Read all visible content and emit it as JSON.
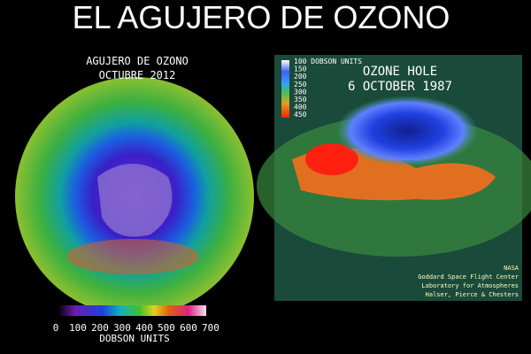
{
  "title": "EL AGUJERO DE OZONO",
  "left_panel": {
    "title_lines": [
      "AGUJERO DE OZONO",
      "OCTUBRE 2012"
    ],
    "colorbar": {
      "ticks": [
        0,
        100,
        200,
        300,
        400,
        500,
        600,
        700
      ],
      "label": "DOBSON UNITS"
    }
  },
  "right_panel": {
    "title_lines": [
      "OZONE HOLE",
      "6 OCTOBER 1987"
    ],
    "colorbar": {
      "labels": [
        "100 DOBSON UNITS",
        "150",
        "200",
        "250",
        "300",
        "350",
        "400",
        "450"
      ]
    },
    "credits": [
      "NASA",
      "Goddard Space Flight Center",
      "Laboratory for Atmospheres",
      "Halser, Pierce & Chesters"
    ]
  }
}
